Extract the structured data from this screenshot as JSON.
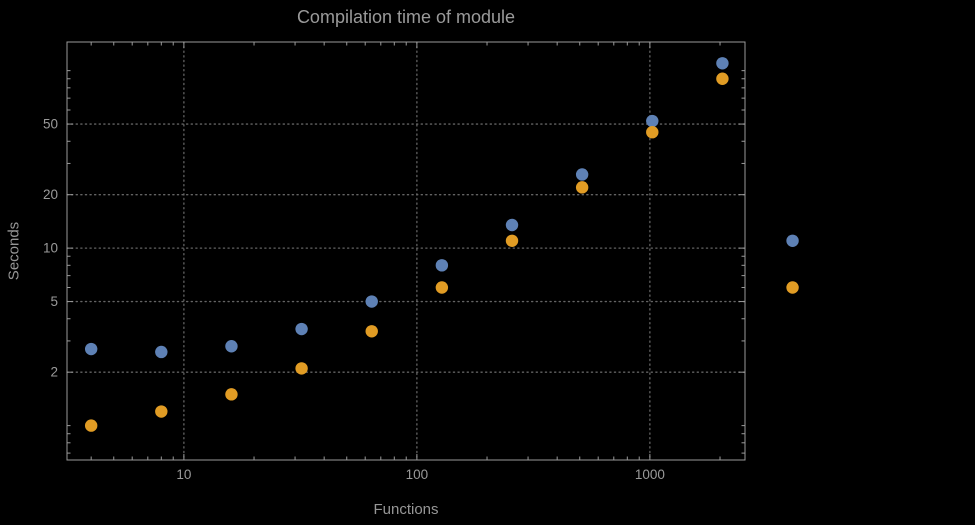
{
  "chart_data": {
    "type": "scatter",
    "title": "Compilation time of module",
    "xlabel": "Functions",
    "ylabel": "Seconds",
    "x_scale": "log",
    "y_scale": "log",
    "xlim": [
      3.15,
      2560
    ],
    "ylim": [
      0.64,
      145
    ],
    "grid": "dotted",
    "legend": "none",
    "x_ticks": [
      {
        "value": 10,
        "label": "10"
      },
      {
        "value": 100,
        "label": "100"
      },
      {
        "value": 1000,
        "label": "1000"
      }
    ],
    "y_ticks": [
      {
        "value": 2,
        "label": "2"
      },
      {
        "value": 5,
        "label": "5"
      },
      {
        "value": 10,
        "label": "10"
      },
      {
        "value": 20,
        "label": "20"
      },
      {
        "value": 50,
        "label": "50"
      }
    ],
    "x_minor_ticks": [
      4,
      5,
      6,
      7,
      8,
      9,
      20,
      30,
      40,
      50,
      60,
      70,
      80,
      90,
      200,
      300,
      400,
      500,
      600,
      700,
      800,
      900,
      2000
    ],
    "y_minor_ticks": [
      0.7,
      0.8,
      0.9,
      1,
      3,
      4,
      6,
      7,
      8,
      9,
      30,
      40,
      60,
      70,
      80,
      90,
      100
    ],
    "series": [
      {
        "name": "blue-series",
        "color": "#5e81b5",
        "points": [
          [
            4,
            2.7
          ],
          [
            8,
            2.6
          ],
          [
            16,
            2.8
          ],
          [
            32,
            3.5
          ],
          [
            64,
            5.0
          ],
          [
            128,
            8.0
          ],
          [
            256,
            13.5
          ],
          [
            512,
            26
          ],
          [
            1024,
            52
          ],
          [
            2048,
            110
          ],
          [
            4096,
            11
          ]
        ]
      },
      {
        "name": "orange-series",
        "color": "#e19c24",
        "points": [
          [
            4,
            1.0
          ],
          [
            8,
            1.2
          ],
          [
            16,
            1.5
          ],
          [
            32,
            2.1
          ],
          [
            64,
            3.4
          ],
          [
            128,
            6.0
          ],
          [
            256,
            11
          ],
          [
            512,
            22
          ],
          [
            1024,
            45
          ],
          [
            2048,
            90
          ],
          [
            4096,
            6.0
          ]
        ]
      }
    ],
    "colors": {
      "background": "#000000",
      "frame": "#9a9a9a",
      "grid": "#646464",
      "text": "#9a9a9a"
    }
  }
}
